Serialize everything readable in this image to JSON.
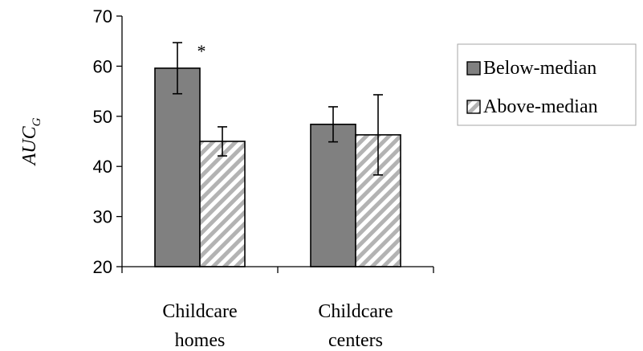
{
  "chart_data": {
    "type": "bar",
    "title": "",
    "xlabel": "",
    "ylabel": {
      "main": "AUC",
      "subscript": "G"
    },
    "ylim": [
      20,
      70
    ],
    "yticks": [
      20,
      30,
      40,
      50,
      60,
      70
    ],
    "categories": [
      {
        "lines": [
          "Childcare",
          "homes"
        ]
      },
      {
        "lines": [
          "Childcare",
          "centers"
        ]
      }
    ],
    "series": [
      {
        "name": "Below-median",
        "values": [
          59.6,
          48.4
        ],
        "errors": [
          5.1,
          3.5
        ],
        "fill": "#808080",
        "pattern": "solid"
      },
      {
        "name": "Above-median",
        "values": [
          45.0,
          46.3
        ],
        "errors": [
          2.9,
          8.0
        ],
        "fill": "#c0c0c0",
        "pattern": "hatched"
      }
    ],
    "annotations": [
      {
        "text": "*",
        "category_index": 0,
        "series_index": 0
      }
    ],
    "legend_position": "right",
    "grid": false
  }
}
